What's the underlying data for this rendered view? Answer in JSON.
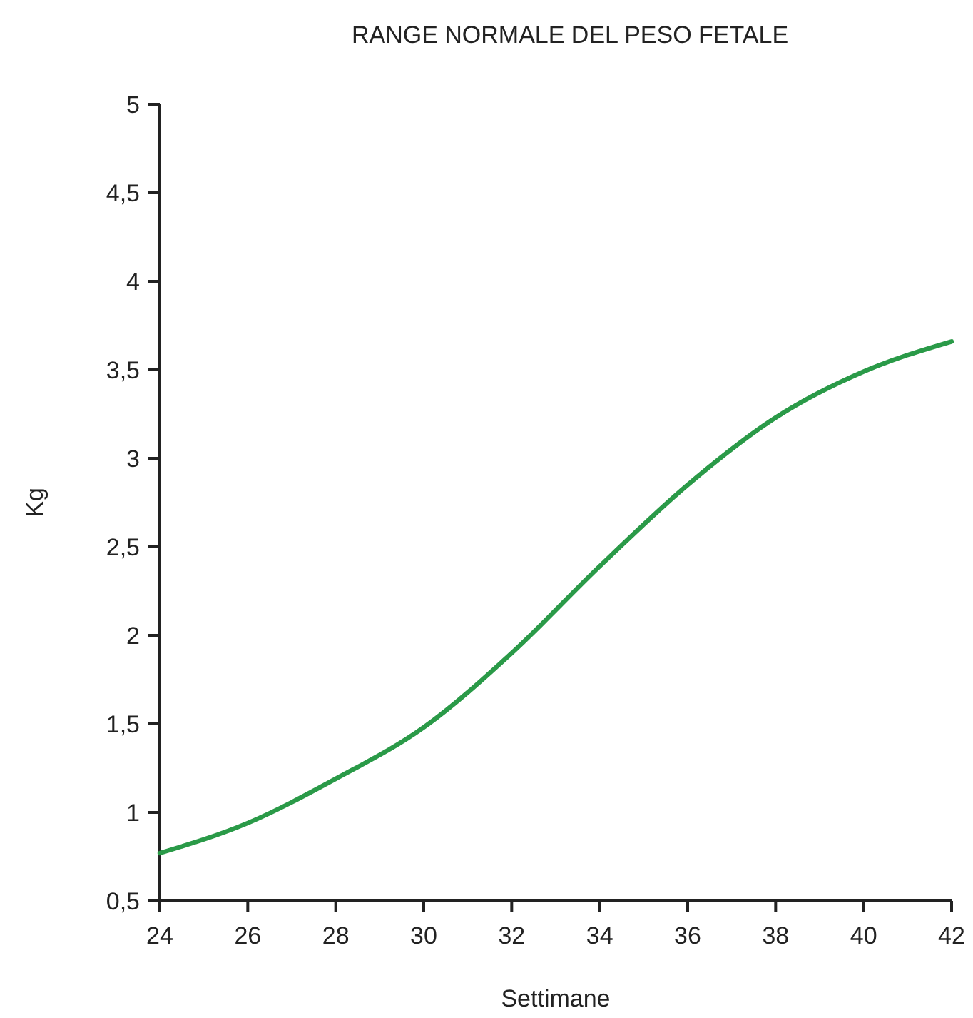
{
  "chart_data": {
    "type": "line",
    "title": "RANGE NORMALE DEL PESO FETALE",
    "xlabel": "Settimane",
    "ylabel": "Kg",
    "x": [
      24,
      26,
      28,
      30,
      32,
      34,
      36,
      38,
      40,
      42
    ],
    "series": [
      {
        "color": "#2a9a48",
        "values": [
          0.77,
          0.94,
          1.19,
          1.48,
          1.9,
          2.39,
          2.85,
          3.23,
          3.49,
          3.66
        ]
      }
    ],
    "xlim": [
      24,
      42
    ],
    "xticks": [
      24,
      26,
      28,
      30,
      32,
      34,
      36,
      38,
      40,
      42
    ],
    "ylim": [
      0.5,
      5
    ],
    "yticks": [
      {
        "value": 0.5,
        "label": "0,5"
      },
      1,
      {
        "value": 1.5,
        "label": "1,5"
      },
      2,
      {
        "value": 2.5,
        "label": "2,5"
      },
      3,
      {
        "value": 3.5,
        "label": "3,5"
      },
      4,
      {
        "value": 4.5,
        "label": "4,5"
      },
      5
    ],
    "marker": "none",
    "line_style": "solid"
  }
}
